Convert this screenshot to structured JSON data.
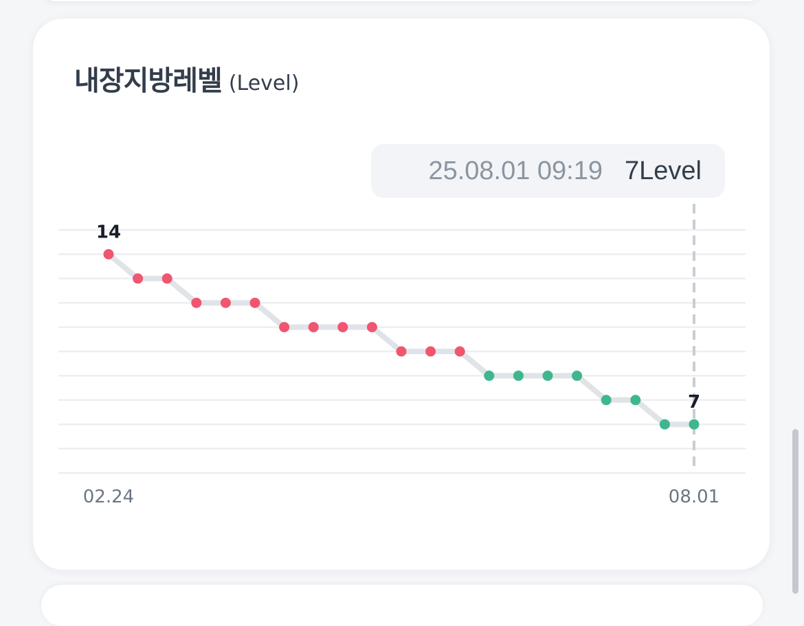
{
  "card": {
    "title": "내장지방레벨",
    "title_unit": "(Level)"
  },
  "tooltip": {
    "datetime": "25.08.01 09:19",
    "value_label": "7Level"
  },
  "chart_data": {
    "type": "line",
    "x_labels_shown": [
      "02.24",
      "08.01"
    ],
    "values": [
      14,
      13,
      13,
      12,
      12,
      12,
      11,
      11,
      11,
      11,
      10,
      10,
      10,
      9,
      9,
      9,
      9,
      8,
      8,
      7,
      7
    ],
    "annotated_points": [
      {
        "index": 0,
        "label": "14"
      },
      {
        "index": 20,
        "label": "7"
      }
    ],
    "ylim": [
      5,
      15
    ],
    "grid": true,
    "selected_index": 20,
    "colors": {
      "high": "#f0566f",
      "low": "#3fb68e",
      "line": "#e0e3e8",
      "grid": "#eceef1",
      "cursor": "#c9cdd3"
    },
    "low_threshold": 9
  }
}
